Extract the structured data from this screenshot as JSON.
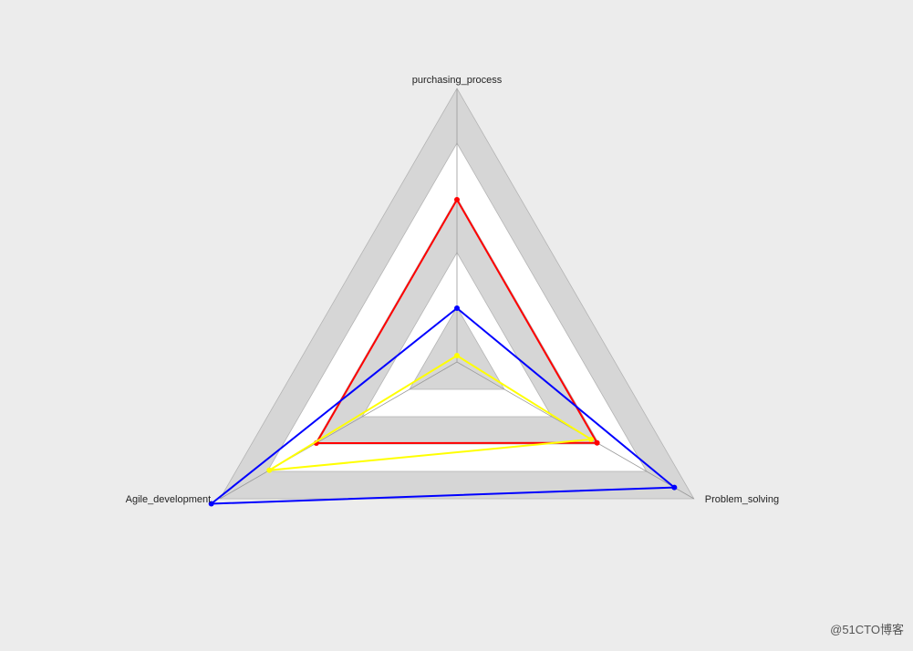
{
  "chart_data": {
    "type": "radar",
    "axes": [
      "purchasing_process",
      "Problem_solving",
      "Agile_development"
    ],
    "rings": 5,
    "range": [
      0,
      1
    ],
    "series": [
      {
        "color": "#ff0000",
        "values": [
          0.5933,
          0.5913,
          0.5933
        ]
      },
      {
        "color": "#0000ff",
        "values": [
          0.1967,
          0.9174,
          1.0367
        ]
      },
      {
        "color": "#ffff00",
        "values": [
          0.0233,
          0.5659,
          0.7918
        ]
      }
    ],
    "colors": {
      "background": "#ececec",
      "ring_gray": "#d6d6d6",
      "ring_white": "#ffffff",
      "ring_stroke": "#b4b4b4"
    }
  },
  "watermark": "@51CTO博客"
}
